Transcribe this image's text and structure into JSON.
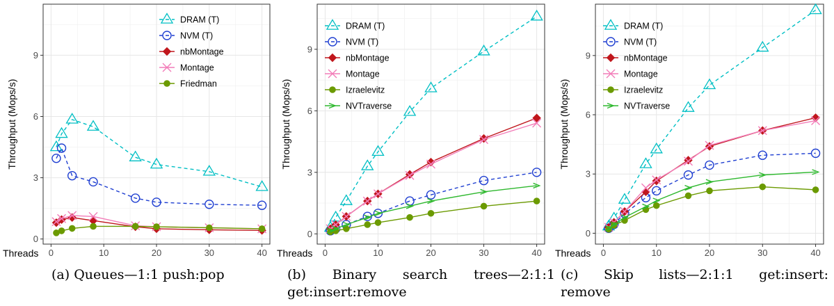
{
  "colors": {
    "dram": "#00BFC4",
    "nvm": "#1F3FD1",
    "nbmontage": "#C0161C",
    "montage": "#F27CB8",
    "friedman": "#6B9A00",
    "nvtraverse": "#2EB82E",
    "grid": "#e6e6e6"
  },
  "chart_data": [
    {
      "type": "line",
      "id": "a",
      "xlabel": "Threads",
      "ylabel": "Throughput (Mops/s)",
      "x": [
        1,
        2,
        4,
        8,
        16,
        20,
        30,
        40
      ],
      "xticks": [
        0,
        10,
        20,
        30,
        40
      ],
      "yticks": [
        0,
        3,
        6,
        9
      ],
      "xlim": [
        -1.5,
        41.5
      ],
      "ylim": [
        -0.25,
        11.5
      ],
      "legend_position": "top-right",
      "series": [
        {
          "name": "DRAM (T)",
          "key": "dram",
          "marker": "triangle",
          "dash": true,
          "values": [
            4.5,
            5.15,
            5.85,
            5.5,
            4.0,
            3.65,
            3.3,
            2.55
          ]
        },
        {
          "name": "NVM (T)",
          "key": "nvm",
          "marker": "circle-open",
          "dash": true,
          "values": [
            3.95,
            4.45,
            3.1,
            2.8,
            2.0,
            1.8,
            1.7,
            1.65
          ]
        },
        {
          "name": "nbMontage",
          "key": "nbmontage",
          "marker": "diamond",
          "dash": false,
          "values": [
            0.8,
            0.95,
            1.05,
            0.9,
            0.6,
            0.5,
            0.45,
            0.42
          ]
        },
        {
          "name": "Montage",
          "key": "montage",
          "marker": "x",
          "dash": false,
          "values": [
            0.85,
            1.0,
            1.15,
            1.1,
            0.65,
            0.6,
            0.55,
            0.5
          ]
        },
        {
          "name": "Friedman",
          "key": "friedman",
          "marker": "dot",
          "dash": false,
          "values": [
            0.3,
            0.4,
            0.52,
            0.62,
            0.62,
            0.6,
            0.55,
            0.5
          ]
        }
      ]
    },
    {
      "type": "line",
      "id": "b",
      "xlabel": "Threads",
      "ylabel": "Throughput (Mops/s)",
      "x": [
        1,
        2,
        4,
        8,
        10,
        16,
        20,
        30,
        40
      ],
      "xticks": [
        0,
        10,
        20,
        30,
        40
      ],
      "yticks": [
        0,
        3,
        6,
        9
      ],
      "xlim": [
        -1.5,
        41.5
      ],
      "ylim": [
        -0.5,
        11.2
      ],
      "legend_position": "top-left",
      "series": [
        {
          "name": "DRAM (T)",
          "key": "dram",
          "marker": "triangle",
          "dash": true,
          "values": [
            0.3,
            0.8,
            1.6,
            3.3,
            4.0,
            5.95,
            7.1,
            8.9,
            10.6
          ]
        },
        {
          "name": "NVM (T)",
          "key": "nvm",
          "marker": "circle-open",
          "dash": true,
          "values": [
            0.15,
            0.25,
            0.45,
            0.85,
            1.0,
            1.6,
            1.9,
            2.6,
            3.0
          ]
        },
        {
          "name": "nbMontage",
          "key": "nbmontage",
          "marker": "diamond",
          "dash": false,
          "values": [
            0.25,
            0.45,
            0.85,
            1.6,
            1.95,
            2.9,
            3.5,
            4.65,
            5.65
          ]
        },
        {
          "name": "Montage",
          "key": "montage",
          "marker": "x",
          "dash": false,
          "values": [
            0.25,
            0.45,
            0.85,
            1.6,
            1.95,
            2.85,
            3.4,
            4.6,
            5.4
          ]
        },
        {
          "name": "Izraelevitz",
          "key": "friedman",
          "marker": "dot",
          "dash": false,
          "values": [
            0.1,
            0.15,
            0.25,
            0.45,
            0.55,
            0.8,
            1.0,
            1.35,
            1.6
          ]
        },
        {
          "name": "NVTraverse",
          "key": "nvtraverse",
          "marker": "arrow",
          "dash": false,
          "values": [
            0.15,
            0.25,
            0.45,
            0.8,
            1.0,
            1.35,
            1.6,
            2.05,
            2.35
          ]
        }
      ]
    },
    {
      "type": "line",
      "id": "c",
      "xlabel": "Threads",
      "ylabel": "Throughput (Mops/s)",
      "x": [
        1,
        2,
        4,
        8,
        10,
        16,
        20,
        30,
        40
      ],
      "xticks": [
        0,
        10,
        20,
        30,
        40
      ],
      "yticks": [
        0,
        3,
        6,
        9
      ],
      "xlim": [
        -1.5,
        41.5
      ],
      "ylim": [
        -0.55,
        11.6
      ],
      "legend_position": "top-left",
      "series": [
        {
          "name": "DRAM (T)",
          "key": "dram",
          "marker": "triangle",
          "dash": true,
          "values": [
            0.35,
            0.75,
            1.7,
            3.5,
            4.25,
            6.35,
            7.5,
            9.4,
            11.3
          ]
        },
        {
          "name": "NVM (T)",
          "key": "nvm",
          "marker": "circle-open",
          "dash": true,
          "values": [
            0.25,
            0.45,
            1.0,
            1.8,
            2.15,
            2.95,
            3.45,
            3.95,
            4.05
          ]
        },
        {
          "name": "nbMontage",
          "key": "nbmontage",
          "marker": "diamond",
          "dash": false,
          "values": [
            0.3,
            0.55,
            1.1,
            2.1,
            2.65,
            3.7,
            4.4,
            5.2,
            5.85
          ]
        },
        {
          "name": "Montage",
          "key": "montage",
          "marker": "x",
          "dash": false,
          "values": [
            0.3,
            0.55,
            1.1,
            2.3,
            2.7,
            3.65,
            4.45,
            5.2,
            5.7
          ]
        },
        {
          "name": "Izraelevitz",
          "key": "friedman",
          "marker": "dot",
          "dash": false,
          "values": [
            0.2,
            0.4,
            0.65,
            1.2,
            1.4,
            1.9,
            2.15,
            2.35,
            2.2
          ]
        },
        {
          "name": "NVTraverse",
          "key": "nvtraverse",
          "marker": "arrow",
          "dash": false,
          "values": [
            0.25,
            0.45,
            0.8,
            1.35,
            1.65,
            2.3,
            2.6,
            2.95,
            3.1
          ]
        }
      ]
    }
  ],
  "captions": {
    "a": "(a) Queues—1:1 push:pop",
    "b_l1": [
      "(b)",
      "Binary",
      "search",
      "trees—2:1:1"
    ],
    "b_l2": "get:insert:remove",
    "c_l1": [
      "(c)",
      "Skip",
      "lists—2:1:1",
      "get:insert:"
    ],
    "c_l2": "remove"
  }
}
